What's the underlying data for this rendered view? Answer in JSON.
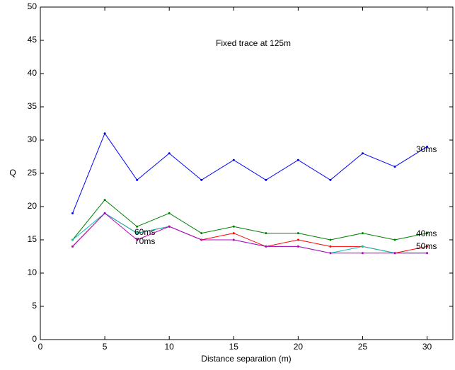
{
  "chart_data": {
    "type": "line",
    "annotation": "Fixed trace at 125m",
    "x_label": "Distance separation (m)",
    "y_label": "Q",
    "x": [
      2.5,
      5,
      7.5,
      10,
      12.5,
      15,
      17.5,
      20,
      22.5,
      25,
      27.5,
      30
    ],
    "series": [
      {
        "name": "30ms",
        "color": "#0000ff",
        "values": [
          19,
          31,
          24,
          28,
          24,
          27,
          24,
          27,
          24,
          28,
          26,
          29
        ]
      },
      {
        "name": "40ms",
        "color": "#008000",
        "values": [
          15,
          21,
          17,
          19,
          16,
          17,
          16,
          16,
          15,
          16,
          15,
          16
        ]
      },
      {
        "name": "50ms",
        "color": "#ff0000",
        "values": [
          14,
          19,
          16,
          17,
          15,
          16,
          14,
          15,
          14,
          14,
          13,
          14
        ]
      },
      {
        "name": "60ms",
        "color": "#00bfbf",
        "values": [
          15,
          19,
          16,
          17,
          15,
          15,
          14,
          14,
          13,
          14,
          13,
          13
        ]
      },
      {
        "name": "70ms",
        "color": "#bf00bf",
        "values": [
          14,
          19,
          15,
          17,
          15,
          15,
          14,
          14,
          13,
          13,
          13,
          13
        ]
      }
    ],
    "xlim": [
      0,
      32
    ],
    "xticks": [
      0,
      5,
      10,
      15,
      20,
      25,
      30
    ],
    "ylim": [
      0,
      50
    ],
    "yticks": [
      0,
      5,
      10,
      15,
      20,
      25,
      30,
      35,
      40,
      45,
      50
    ],
    "grid": false
  }
}
